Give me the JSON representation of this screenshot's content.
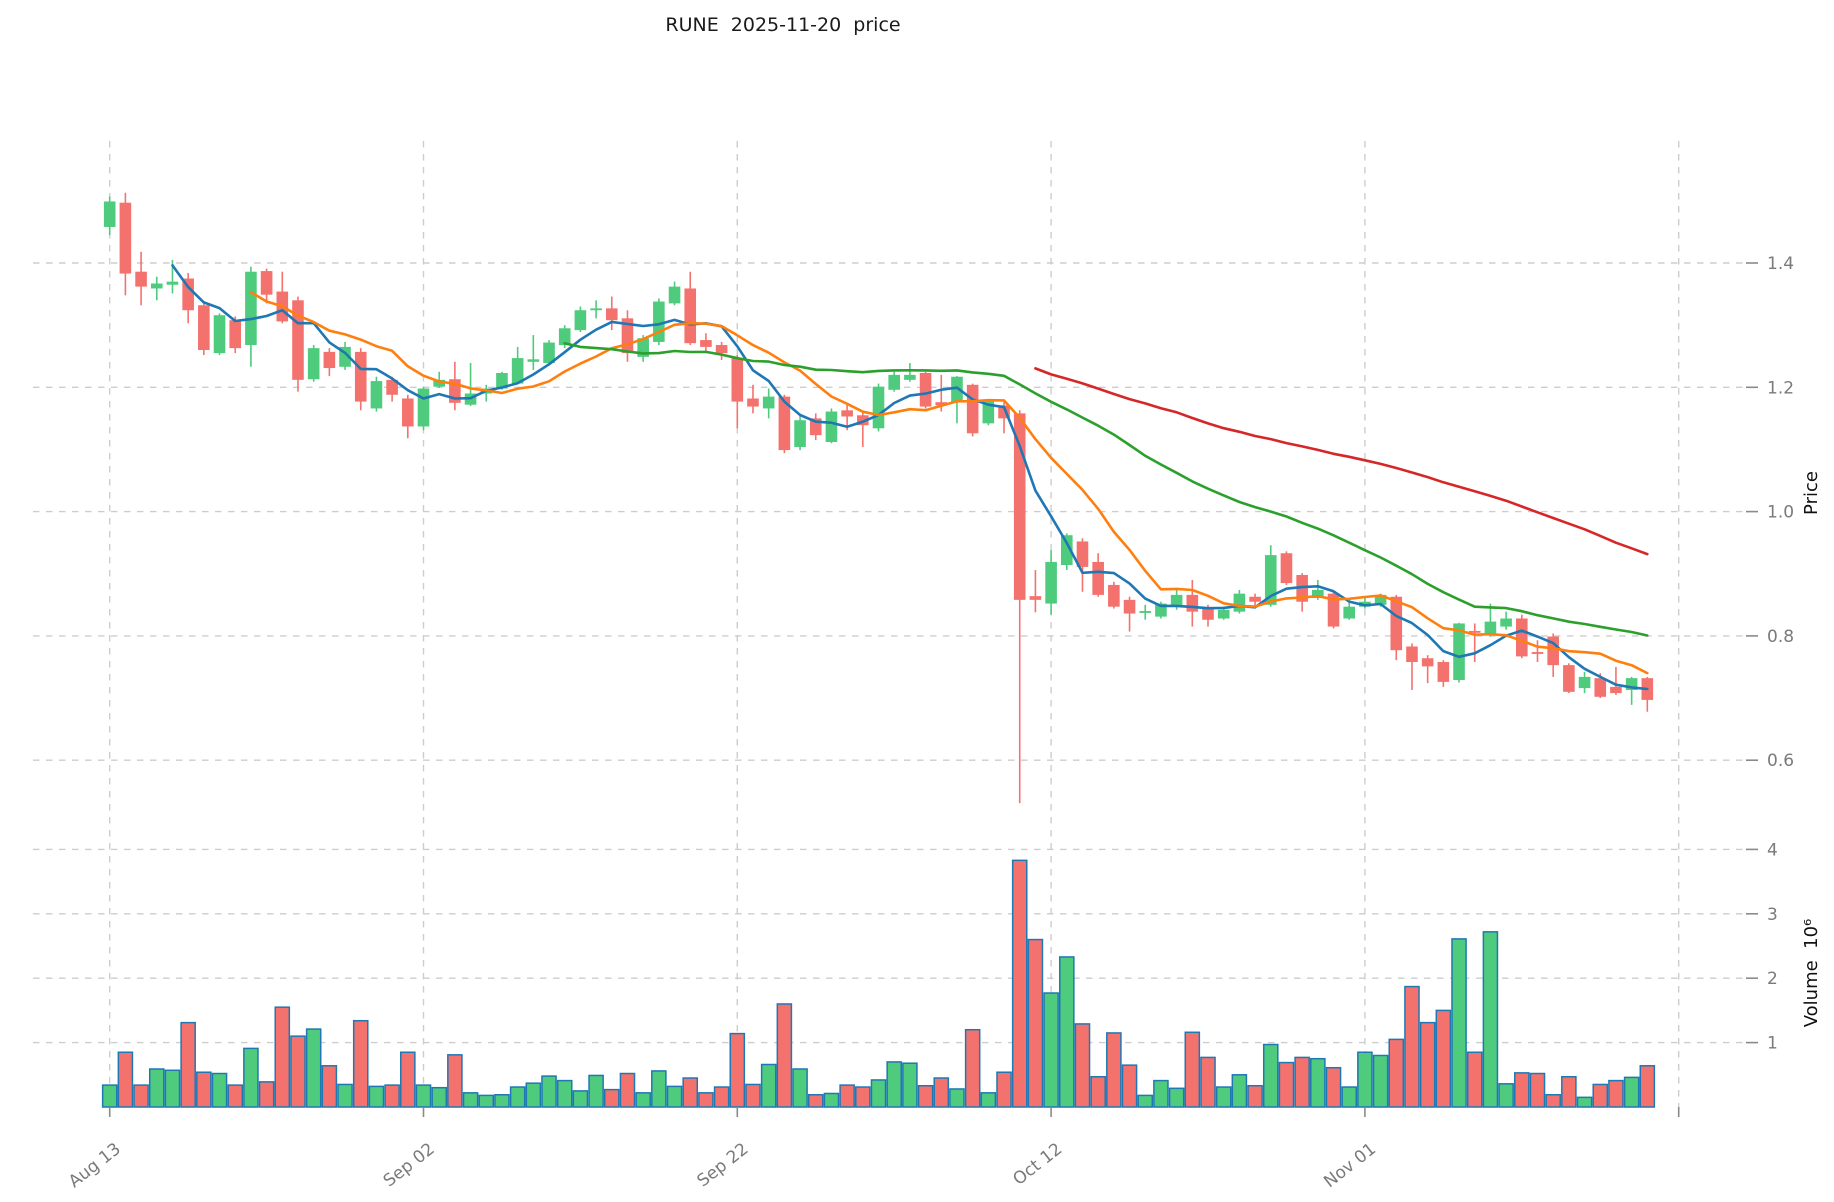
{
  "title": "RUNE  2025-11-20  price",
  "price_axis": {
    "label": "Price",
    "ticks": [
      {
        "label": "1.4",
        "value": 1.4
      },
      {
        "label": "1.2",
        "value": 1.2
      },
      {
        "label": "1.0",
        "value": 1.0
      },
      {
        "label": "0.8",
        "value": 0.8
      },
      {
        "label": "0.6",
        "value": 0.6
      }
    ]
  },
  "volume_axis": {
    "label": "Volume  10⁶",
    "ticks": [
      {
        "label": "4",
        "value": 4
      },
      {
        "label": "3",
        "value": 3
      },
      {
        "label": "2",
        "value": 2
      },
      {
        "label": "1",
        "value": 1
      }
    ]
  },
  "x_axis": {
    "tick_labels": [
      "Aug 13",
      "Sep 02",
      "Sep 22",
      "Oct 12",
      "Nov 01"
    ],
    "tick_indices": [
      0,
      20,
      40,
      60,
      80
    ],
    "unlabeled_gridline_index": 100
  },
  "colors": {
    "up": "#4ecb7d",
    "down": "#f4726e",
    "wick_up": "#4ecb7d",
    "wick_down": "#f4726e",
    "volume_edge": "#1f77b4",
    "grid": "#cdcdcd",
    "tick_mark": "#8a8a8a",
    "tick_text": "#7a7a7a",
    "title_text": "#1a1a1a",
    "ma_colors": [
      "#1f77b4",
      "#ff7f0e",
      "#2ca02c",
      "#d62728"
    ]
  },
  "chart_data": {
    "type": "candlestick",
    "description": "Daily OHLC candles with volume subpanel; 99 sessions ending 2025-11-20 chart date; grid on; price axis right 0.6-1.4; volume axis right in millions",
    "legend_position": "none",
    "price_ylim": [
      0.5,
      1.6
    ],
    "volume_ylim_millions": [
      0,
      4.4
    ],
    "moving_averages": [
      {
        "name": "SMA5",
        "window": 5,
        "color": "#1f77b4"
      },
      {
        "name": "SMA10",
        "window": 10,
        "color": "#ff7f0e"
      },
      {
        "name": "SMA30",
        "window": 30,
        "color": "#2ca02c"
      },
      {
        "name": "SMA60",
        "window": 60,
        "color": "#d62728"
      }
    ],
    "ohlc": [
      [
        1.458,
        1.507,
        1.445,
        1.499
      ],
      [
        1.497,
        1.513,
        1.348,
        1.383
      ],
      [
        1.386,
        1.418,
        1.332,
        1.362
      ],
      [
        1.359,
        1.378,
        1.34,
        1.367
      ],
      [
        1.365,
        1.405,
        1.351,
        1.37
      ],
      [
        1.375,
        1.384,
        1.303,
        1.324
      ],
      [
        1.332,
        1.338,
        1.252,
        1.26
      ],
      [
        1.255,
        1.319,
        1.252,
        1.316
      ],
      [
        1.308,
        1.314,
        1.255,
        1.263
      ],
      [
        1.268,
        1.394,
        1.233,
        1.386
      ],
      [
        1.387,
        1.391,
        1.335,
        1.349
      ],
      [
        1.354,
        1.386,
        1.303,
        1.306
      ],
      [
        1.34,
        1.346,
        1.193,
        1.212
      ],
      [
        1.213,
        1.268,
        1.209,
        1.263
      ],
      [
        1.257,
        1.263,
        1.218,
        1.231
      ],
      [
        1.233,
        1.273,
        1.228,
        1.265
      ],
      [
        1.257,
        1.263,
        1.163,
        1.177
      ],
      [
        1.166,
        1.217,
        1.161,
        1.21
      ],
      [
        1.212,
        1.217,
        1.177,
        1.188
      ],
      [
        1.182,
        1.188,
        1.118,
        1.137
      ],
      [
        1.137,
        1.201,
        1.131,
        1.198
      ],
      [
        1.201,
        1.225,
        1.199,
        1.212
      ],
      [
        1.213,
        1.241,
        1.163,
        1.175
      ],
      [
        1.172,
        1.239,
        1.17,
        1.19
      ],
      [
        1.19,
        1.204,
        1.177,
        1.198
      ],
      [
        1.198,
        1.225,
        1.196,
        1.223
      ],
      [
        1.206,
        1.265,
        1.206,
        1.247
      ],
      [
        1.241,
        1.284,
        1.228,
        1.245
      ],
      [
        1.239,
        1.276,
        1.236,
        1.272
      ],
      [
        1.268,
        1.3,
        1.263,
        1.295
      ],
      [
        1.292,
        1.33,
        1.289,
        1.324
      ],
      [
        1.324,
        1.34,
        1.311,
        1.327
      ],
      [
        1.327,
        1.346,
        1.292,
        1.308
      ],
      [
        1.311,
        1.324,
        1.241,
        1.255
      ],
      [
        1.249,
        1.284,
        1.241,
        1.279
      ],
      [
        1.273,
        1.343,
        1.268,
        1.338
      ],
      [
        1.335,
        1.37,
        1.332,
        1.362
      ],
      [
        1.359,
        1.386,
        1.268,
        1.271
      ],
      [
        1.276,
        1.287,
        1.257,
        1.265
      ],
      [
        1.268,
        1.273,
        1.244,
        1.255
      ],
      [
        1.247,
        1.252,
        1.134,
        1.177
      ],
      [
        1.182,
        1.204,
        1.158,
        1.169
      ],
      [
        1.166,
        1.198,
        1.15,
        1.185
      ],
      [
        1.185,
        1.188,
        1.094,
        1.099
      ],
      [
        1.104,
        1.155,
        1.099,
        1.147
      ],
      [
        1.15,
        1.158,
        1.115,
        1.123
      ],
      [
        1.112,
        1.166,
        1.11,
        1.161
      ],
      [
        1.163,
        1.174,
        1.131,
        1.153
      ],
      [
        1.155,
        1.161,
        1.104,
        1.139
      ],
      [
        1.134,
        1.206,
        1.129,
        1.201
      ],
      [
        1.196,
        1.225,
        1.193,
        1.22
      ],
      [
        1.212,
        1.239,
        1.209,
        1.22
      ],
      [
        1.223,
        1.225,
        1.166,
        1.169
      ],
      [
        1.176,
        1.22,
        1.161,
        1.171
      ],
      [
        1.176,
        1.218,
        1.142,
        1.217
      ],
      [
        1.204,
        1.206,
        1.121,
        1.126
      ],
      [
        1.142,
        1.18,
        1.139,
        1.177
      ],
      [
        1.171,
        1.177,
        1.126,
        1.15
      ],
      [
        1.158,
        1.163,
        0.531,
        0.858
      ],
      [
        0.864,
        0.906,
        0.838,
        0.858
      ],
      [
        0.852,
        0.938,
        0.834,
        0.919
      ],
      [
        0.914,
        0.965,
        0.906,
        0.962
      ],
      [
        0.952,
        0.957,
        0.871,
        0.911
      ],
      [
        0.919,
        0.933,
        0.863,
        0.866
      ],
      [
        0.882,
        0.887,
        0.844,
        0.847
      ],
      [
        0.858,
        0.863,
        0.807,
        0.836
      ],
      [
        0.837,
        0.85,
        0.826,
        0.84
      ],
      [
        0.831,
        0.855,
        0.828,
        0.852
      ],
      [
        0.847,
        0.877,
        0.842,
        0.866
      ],
      [
        0.866,
        0.89,
        0.815,
        0.839
      ],
      [
        0.844,
        0.85,
        0.815,
        0.826
      ],
      [
        0.828,
        0.847,
        0.826,
        0.842
      ],
      [
        0.839,
        0.874,
        0.836,
        0.868
      ],
      [
        0.863,
        0.868,
        0.844,
        0.855
      ],
      [
        0.85,
        0.946,
        0.847,
        0.93
      ],
      [
        0.933,
        0.936,
        0.882,
        0.885
      ],
      [
        0.898,
        0.901,
        0.839,
        0.855
      ],
      [
        0.861,
        0.89,
        0.858,
        0.874
      ],
      [
        0.868,
        0.871,
        0.812,
        0.815
      ],
      [
        0.828,
        0.855,
        0.826,
        0.847
      ],
      [
        0.847,
        0.863,
        0.844,
        0.855
      ],
      [
        0.85,
        0.868,
        0.847,
        0.866
      ],
      [
        0.863,
        0.866,
        0.761,
        0.777
      ],
      [
        0.783,
        0.788,
        0.713,
        0.758
      ],
      [
        0.764,
        0.769,
        0.724,
        0.751
      ],
      [
        0.758,
        0.761,
        0.718,
        0.726
      ],
      [
        0.729,
        0.821,
        0.725,
        0.82
      ],
      [
        0.808,
        0.82,
        0.758,
        0.805
      ],
      [
        0.801,
        0.852,
        0.799,
        0.823
      ],
      [
        0.815,
        0.839,
        0.81,
        0.828
      ],
      [
        0.828,
        0.834,
        0.764,
        0.767
      ],
      [
        0.774,
        0.793,
        0.758,
        0.771
      ],
      [
        0.799,
        0.804,
        0.734,
        0.753
      ],
      [
        0.753,
        0.756,
        0.708,
        0.71
      ],
      [
        0.716,
        0.742,
        0.708,
        0.734
      ],
      [
        0.732,
        0.74,
        0.7,
        0.702
      ],
      [
        0.718,
        0.75,
        0.705,
        0.708
      ],
      [
        0.713,
        0.734,
        0.689,
        0.732
      ],
      [
        0.732,
        0.734,
        0.678,
        0.697
      ]
    ],
    "volume_millions": [
      0.34,
      0.85,
      0.34,
      0.59,
      0.57,
      1.31,
      0.54,
      0.52,
      0.34,
      0.91,
      0.39,
      1.55,
      1.1,
      1.21,
      0.64,
      0.35,
      1.34,
      0.32,
      0.34,
      0.85,
      0.34,
      0.3,
      0.81,
      0.22,
      0.18,
      0.19,
      0.31,
      0.37,
      0.48,
      0.41,
      0.25,
      0.49,
      0.27,
      0.52,
      0.22,
      0.56,
      0.32,
      0.45,
      0.22,
      0.31,
      1.14,
      0.35,
      0.66,
      1.6,
      0.59,
      0.19,
      0.21,
      0.34,
      0.31,
      0.42,
      0.7,
      0.68,
      0.33,
      0.45,
      0.28,
      1.2,
      0.22,
      0.54,
      3.83,
      2.6,
      1.77,
      2.33,
      1.29,
      0.47,
      1.15,
      0.65,
      0.18,
      0.41,
      0.29,
      1.16,
      0.77,
      0.31,
      0.5,
      0.33,
      0.97,
      0.69,
      0.77,
      0.75,
      0.61,
      0.31,
      0.85,
      0.8,
      1.05,
      1.87,
      1.31,
      1.5,
      2.61,
      0.85,
      2.72,
      0.36,
      0.53,
      0.52,
      0.19,
      0.47,
      0.15,
      0.35,
      0.41,
      0.46,
      0.64
    ]
  }
}
